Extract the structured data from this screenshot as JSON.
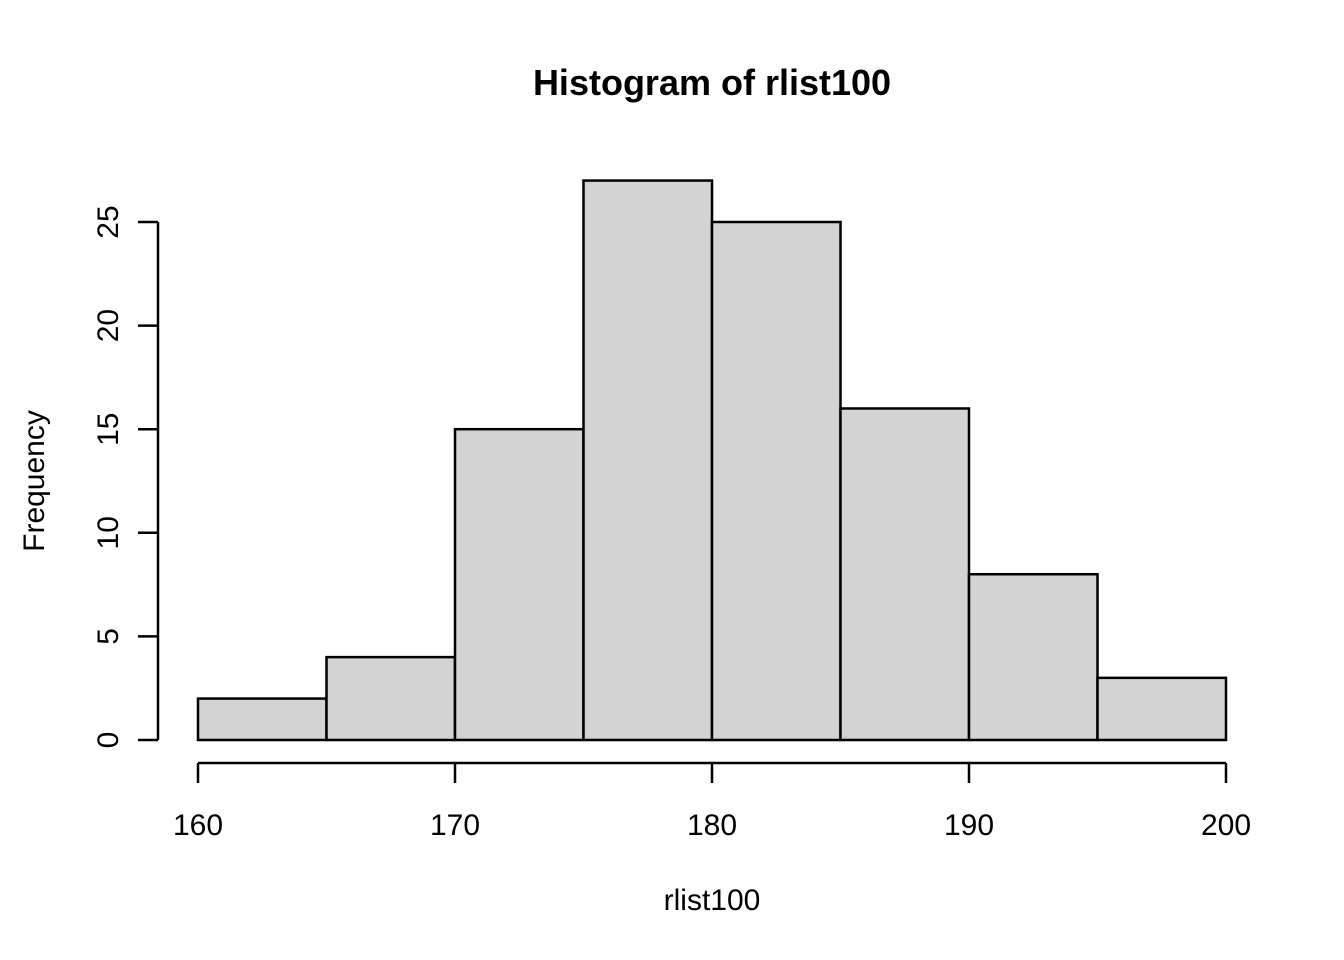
{
  "chart_data": {
    "type": "bar",
    "subtype": "histogram",
    "title": "Histogram of rlist100",
    "xlabel": "rlist100",
    "ylabel": "Frequency",
    "bin_edges": [
      160,
      165,
      170,
      175,
      180,
      185,
      190,
      195,
      200
    ],
    "counts": [
      2,
      4,
      15,
      27,
      25,
      16,
      8,
      3
    ],
    "x_ticks": [
      160,
      170,
      180,
      190,
      200
    ],
    "y_ticks": [
      0,
      5,
      10,
      15,
      20,
      25
    ],
    "xlim": [
      160,
      200
    ],
    "ylim": [
      0,
      25
    ],
    "grid": false,
    "legend": "none",
    "colors": {
      "bar_fill": "#d3d3d3",
      "bar_border": "#000000",
      "axis": "#000000",
      "text": "#000000",
      "background": "#ffffff"
    }
  }
}
